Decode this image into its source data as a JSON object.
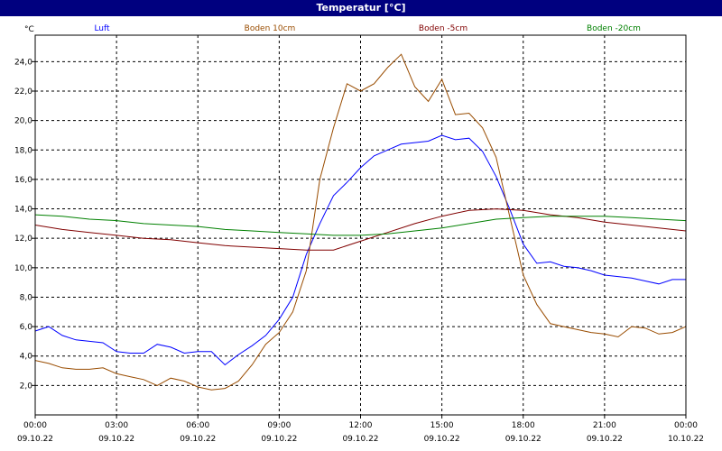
{
  "window": {
    "title": "Temperatur [°C]"
  },
  "chart_data": {
    "type": "line",
    "title": "Temperatur [°C]",
    "ylabel": "°C",
    "ylim": [
      0,
      25.8
    ],
    "yticks": [
      "2,0",
      "4,0",
      "6,0",
      "8,0",
      "10,0",
      "12,0",
      "14,0",
      "16,0",
      "18,0",
      "20,0",
      "22,0",
      "24,0"
    ],
    "yticks_values": [
      2,
      4,
      6,
      8,
      10,
      12,
      14,
      16,
      18,
      20,
      22,
      24
    ],
    "xlim_hours": [
      0,
      24
    ],
    "xticks": [
      {
        "time": "00:00",
        "date": "09.10.22"
      },
      {
        "time": "03:00",
        "date": "09.10.22"
      },
      {
        "time": "06:00",
        "date": "09.10.22"
      },
      {
        "time": "09:00",
        "date": "09.10.22"
      },
      {
        "time": "12:00",
        "date": "09.10.22"
      },
      {
        "time": "15:00",
        "date": "09.10.22"
      },
      {
        "time": "18:00",
        "date": "09.10.22"
      },
      {
        "time": "21:00",
        "date": "09.10.22"
      },
      {
        "time": "00:00",
        "date": "10.10.22"
      }
    ],
    "grid": true,
    "legend_position": "top",
    "series": [
      {
        "name": "Luft",
        "color": "#0000ff",
        "x": [
          0,
          0.5,
          1,
          1.5,
          2,
          2.5,
          3,
          3.5,
          4,
          4.5,
          5,
          5.5,
          6,
          6.5,
          7,
          7.5,
          8,
          8.5,
          9,
          9.5,
          10,
          10.5,
          11,
          11.5,
          12,
          12.5,
          13,
          13.5,
          14,
          14.5,
          15,
          15.5,
          16,
          16.5,
          17,
          17.5,
          18,
          18.5,
          19,
          19.5,
          20,
          20.5,
          21,
          21.5,
          22,
          22.5,
          23,
          23.5,
          24
        ],
        "values": [
          5.7,
          6.0,
          5.4,
          5.1,
          5.0,
          4.9,
          4.3,
          4.2,
          4.2,
          4.8,
          4.6,
          4.2,
          4.3,
          4.3,
          3.4,
          4.1,
          4.7,
          5.4,
          6.5,
          8.0,
          10.9,
          13.0,
          14.9,
          15.8,
          16.8,
          17.6,
          18.0,
          18.4,
          18.5,
          18.6,
          19.0,
          18.7,
          18.8,
          17.9,
          16.2,
          14.0,
          11.6,
          10.3,
          10.4,
          10.1,
          10.0,
          9.8,
          9.5,
          9.4,
          9.3,
          9.1,
          8.9,
          9.2,
          9.2
        ]
      },
      {
        "name": "Boden 10cm",
        "color": "#994c00",
        "x": [
          0,
          0.5,
          1,
          1.5,
          2,
          2.5,
          3,
          3.5,
          4,
          4.5,
          5,
          5.5,
          6,
          6.5,
          7,
          7.5,
          8,
          8.5,
          9,
          9.5,
          10,
          10.5,
          11,
          11.5,
          12,
          12.5,
          13,
          13.5,
          14,
          14.5,
          15,
          15.5,
          16,
          16.5,
          17,
          17.5,
          18,
          18.5,
          19,
          19.5,
          20,
          20.5,
          21,
          21.5,
          22,
          22.5,
          23,
          23.5,
          24
        ],
        "values": [
          3.7,
          3.5,
          3.2,
          3.1,
          3.1,
          3.2,
          2.8,
          2.6,
          2.4,
          2.0,
          2.5,
          2.3,
          1.9,
          1.7,
          1.8,
          2.3,
          3.4,
          4.8,
          5.6,
          7.0,
          9.8,
          16.0,
          19.5,
          22.5,
          22.0,
          22.5,
          23.6,
          24.5,
          22.3,
          21.3,
          22.8,
          20.4,
          20.5,
          19.5,
          17.5,
          13.5,
          9.5,
          7.5,
          6.2,
          6.0,
          5.8,
          5.6,
          5.5,
          5.3,
          6.0,
          5.9,
          5.5,
          5.6,
          6.0
        ]
      },
      {
        "name": "Boden -5cm",
        "color": "#800000",
        "x": [
          0,
          1,
          2,
          3,
          4,
          5,
          6,
          7,
          8,
          9,
          10,
          11,
          12,
          13,
          14,
          15,
          16,
          17,
          18,
          19,
          20,
          21,
          22,
          23,
          24
        ],
        "values": [
          12.9,
          12.6,
          12.4,
          12.2,
          12.0,
          11.9,
          11.7,
          11.5,
          11.4,
          11.3,
          11.2,
          11.2,
          11.8,
          12.4,
          13.0,
          13.5,
          13.9,
          14.0,
          13.9,
          13.6,
          13.4,
          13.1,
          12.9,
          12.7,
          12.5
        ]
      },
      {
        "name": "Boden -20cm",
        "color": "#008000",
        "x": [
          0,
          1,
          2,
          3,
          4,
          5,
          6,
          7,
          8,
          9,
          10,
          11,
          12,
          13,
          14,
          15,
          16,
          17,
          18,
          19,
          20,
          21,
          22,
          23,
          24
        ],
        "values": [
          13.6,
          13.5,
          13.3,
          13.2,
          13.0,
          12.9,
          12.8,
          12.6,
          12.5,
          12.4,
          12.3,
          12.2,
          12.2,
          12.3,
          12.5,
          12.7,
          13.0,
          13.3,
          13.4,
          13.5,
          13.5,
          13.5,
          13.4,
          13.3,
          13.2
        ]
      }
    ]
  }
}
